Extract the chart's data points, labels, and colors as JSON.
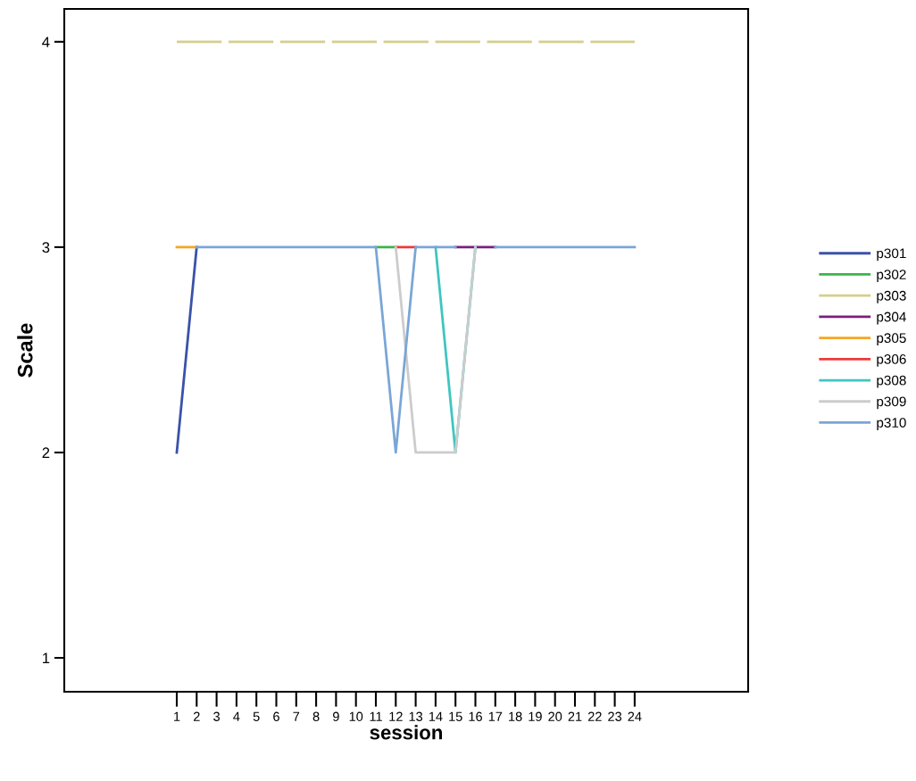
{
  "chart_data": {
    "type": "line",
    "xlabel": "session",
    "ylabel": "Scale",
    "x": [
      1,
      2,
      3,
      4,
      5,
      6,
      7,
      8,
      9,
      10,
      11,
      12,
      13,
      14,
      15,
      16,
      17,
      18,
      19,
      20,
      21,
      22,
      23,
      24
    ],
    "xlim": [
      -4.65,
      29.7
    ],
    "xticks": [
      1,
      2,
      3,
      4,
      5,
      6,
      7,
      8,
      9,
      10,
      11,
      12,
      13,
      14,
      15,
      16,
      17,
      18,
      19,
      20,
      21,
      22,
      23,
      24
    ],
    "ylim": [
      0.835,
      4.16
    ],
    "yticks": [
      1,
      2,
      3,
      4
    ],
    "grid": false,
    "legend": "right",
    "marker": "none",
    "series": [
      {
        "name": "p301",
        "color": "#3a52a8",
        "values": [
          2,
          3,
          null,
          null,
          null,
          null,
          null,
          null,
          null,
          null,
          null,
          null,
          null,
          null,
          null,
          null,
          null,
          null,
          null,
          null,
          null,
          null,
          null,
          null
        ]
      },
      {
        "name": "p302",
        "color": "#3ab54a",
        "values": [
          null,
          null,
          null,
          null,
          null,
          null,
          null,
          null,
          null,
          null,
          3,
          3,
          null,
          null,
          null,
          null,
          null,
          null,
          null,
          null,
          null,
          null,
          null,
          null
        ]
      },
      {
        "name": "p303",
        "color": "#d4cf8e",
        "line_style": "dashed",
        "values": [
          4,
          4,
          4,
          4,
          4,
          4,
          4,
          4,
          4,
          4,
          4,
          4,
          4,
          4,
          4,
          4,
          4,
          4,
          4,
          4,
          4,
          4,
          4,
          4
        ]
      },
      {
        "name": "p304",
        "color": "#7b1f7d",
        "values": [
          null,
          null,
          null,
          null,
          null,
          null,
          null,
          null,
          null,
          null,
          null,
          null,
          null,
          null,
          3,
          3,
          3,
          null,
          null,
          null,
          null,
          null,
          null,
          null
        ]
      },
      {
        "name": "p305",
        "color": "#f5a623",
        "values": [
          3,
          3,
          null,
          null,
          null,
          null,
          null,
          null,
          null,
          null,
          null,
          null,
          null,
          null,
          null,
          null,
          null,
          null,
          null,
          null,
          null,
          null,
          null,
          null
        ]
      },
      {
        "name": "p306",
        "color": "#ee3a3a",
        "values": [
          null,
          null,
          null,
          null,
          null,
          null,
          null,
          null,
          null,
          null,
          null,
          3,
          3,
          null,
          null,
          null,
          null,
          null,
          null,
          null,
          null,
          null,
          null,
          null
        ]
      },
      {
        "name": "p308",
        "color": "#3fc6c0",
        "values": [
          null,
          null,
          null,
          null,
          null,
          null,
          null,
          null,
          null,
          null,
          null,
          null,
          null,
          3,
          2,
          3,
          null,
          null,
          null,
          null,
          null,
          null,
          null,
          null
        ]
      },
      {
        "name": "p309",
        "color": "#cccccc",
        "values": [
          null,
          null,
          null,
          null,
          null,
          null,
          null,
          null,
          null,
          null,
          null,
          3,
          2,
          2,
          2,
          3,
          null,
          null,
          null,
          null,
          null,
          null,
          null,
          null
        ]
      },
      {
        "name": "p310",
        "color": "#7aa6d6",
        "values": [
          null,
          3,
          3,
          3,
          3,
          3,
          3,
          3,
          3,
          3,
          3,
          2,
          3,
          3,
          3,
          null,
          3,
          3,
          3,
          3,
          3,
          3,
          3,
          3
        ]
      }
    ]
  }
}
